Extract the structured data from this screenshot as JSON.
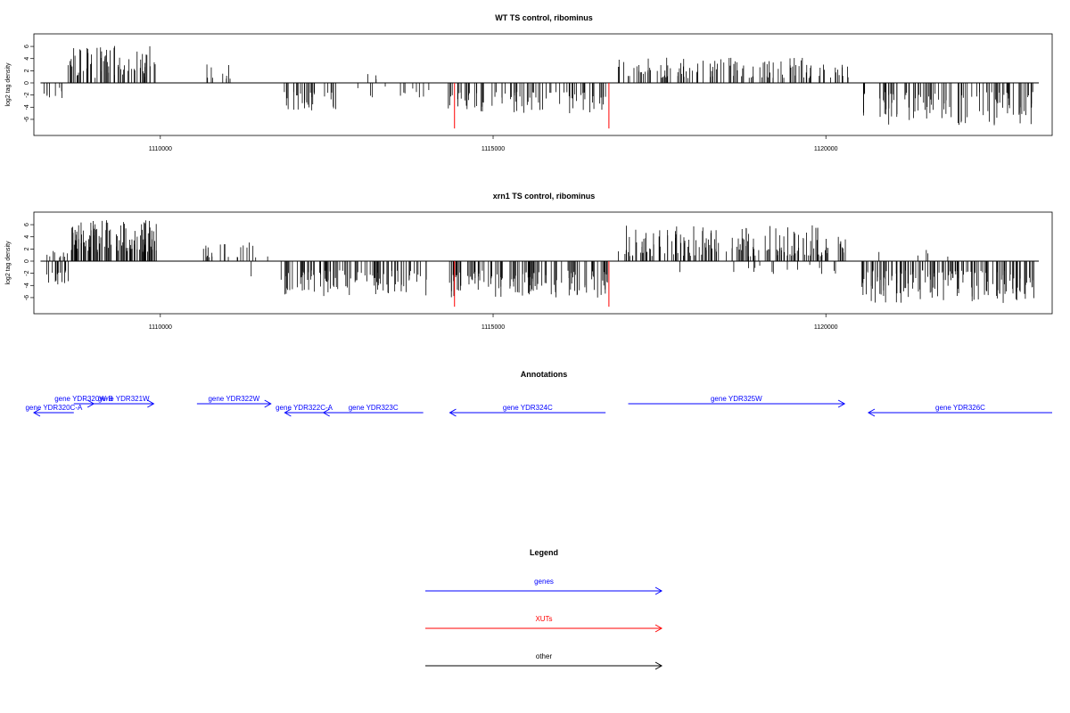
{
  "colors": {
    "gene": "#0000ff",
    "xut": "#ff0000",
    "other": "#000000",
    "frame": "#000000"
  },
  "chart_data": [
    {
      "type": "bar",
      "title": "WT TS control, ribominus",
      "ylabel": "log2 tag density",
      "xlim": [
        1108100,
        1123400
      ],
      "ylim": [
        -7.5,
        7.5
      ],
      "x_ticks": [
        1110000,
        1115000,
        1120000
      ],
      "y_ticks": [
        -6,
        -4,
        -2,
        0,
        2,
        4,
        6
      ],
      "baseline": [
        1108200,
        1123200
      ],
      "density_segments": [
        {
          "strand": "neg",
          "from": 1108250,
          "to": 1108600,
          "count": 8,
          "min": 0.8,
          "max": 2.5
        },
        {
          "strand": "pos",
          "from": 1108600,
          "to": 1109930,
          "count": 70,
          "min": 0.8,
          "max": 6.2
        },
        {
          "strand": "pos",
          "from": 1110650,
          "to": 1111050,
          "count": 9,
          "min": 0.6,
          "max": 3.2
        },
        {
          "strand": "neg",
          "from": 1111850,
          "to": 1112650,
          "count": 30,
          "min": 1.5,
          "max": 4.8
        },
        {
          "strand": "pos",
          "from": 1113100,
          "to": 1113350,
          "count": 3,
          "min": 0.6,
          "max": 2.5
        },
        {
          "strand": "neg",
          "from": 1112900,
          "to": 1114050,
          "count": 12,
          "min": 0.6,
          "max": 2.6
        },
        {
          "strand": "neg",
          "from": 1114300,
          "to": 1116720,
          "count": 80,
          "min": 1.5,
          "max": 5.0
        },
        {
          "strand": "pos",
          "from": 1116880,
          "to": 1120340,
          "count": 120,
          "min": 0.8,
          "max": 4.2
        },
        {
          "strand": "neg",
          "from": 1120540,
          "to": 1123150,
          "count": 100,
          "min": 1.5,
          "max": 7.0
        }
      ],
      "xut_markers": [
        {
          "x": 1114420,
          "y": -7.5
        },
        {
          "x": 1116740,
          "y": -7.5
        }
      ]
    },
    {
      "type": "bar",
      "title": "xrn1 TS control, ribominus",
      "ylabel": "log2 tag density",
      "xlim": [
        1108100,
        1123400
      ],
      "ylim": [
        -7.5,
        7.5
      ],
      "x_ticks": [
        1110000,
        1115000,
        1120000
      ],
      "y_ticks": [
        -6,
        -4,
        -2,
        0,
        2,
        4,
        6
      ],
      "baseline": [
        1108200,
        1123200
      ],
      "density_segments": [
        {
          "strand": "pos",
          "from": 1108250,
          "to": 1108650,
          "count": 10,
          "min": 0.6,
          "max": 2.0
        },
        {
          "strand": "neg",
          "from": 1108250,
          "to": 1108650,
          "count": 15,
          "min": 1.5,
          "max": 4.8
        },
        {
          "strand": "pos",
          "from": 1108650,
          "to": 1109950,
          "count": 110,
          "min": 1.5,
          "max": 6.8
        },
        {
          "strand": "pos",
          "from": 1110600,
          "to": 1111700,
          "count": 25,
          "min": 0.5,
          "max": 3.2
        },
        {
          "strand": "neg",
          "from": 1111350,
          "to": 1111400,
          "count": 1,
          "min": 2.5,
          "max": 2.5
        },
        {
          "strand": "neg",
          "from": 1111800,
          "to": 1114050,
          "count": 100,
          "min": 1.5,
          "max": 6.0
        },
        {
          "strand": "neg",
          "from": 1114300,
          "to": 1116720,
          "count": 120,
          "min": 1.5,
          "max": 6.0
        },
        {
          "strand": "pos",
          "from": 1116880,
          "to": 1120340,
          "count": 160,
          "min": 0.8,
          "max": 5.9
        },
        {
          "strand": "neg",
          "from": 1117400,
          "to": 1120300,
          "count": 15,
          "min": 0.5,
          "max": 2.3
        },
        {
          "strand": "neg",
          "from": 1120540,
          "to": 1123150,
          "count": 150,
          "min": 1.5,
          "max": 7.0
        },
        {
          "strand": "pos",
          "from": 1120650,
          "to": 1121850,
          "count": 5,
          "min": 0.5,
          "max": 2.0
        }
      ],
      "xut_markers": [
        {
          "x": 1114420,
          "y": -7.5
        },
        {
          "x": 1116740,
          "y": -7.5
        }
      ]
    }
  ],
  "annotations": {
    "title": "Annotations",
    "genes": [
      {
        "label": "gene YDR320W-B",
        "start": 1108700,
        "end": 1109000,
        "strand": "+",
        "row": 1
      },
      {
        "label": "gene YDR320C-A",
        "start": 1108100,
        "end": 1108700,
        "strand": "-",
        "row": 2
      },
      {
        "label": "gene YDR321W",
        "start": 1109000,
        "end": 1109900,
        "strand": "+",
        "row": 1
      },
      {
        "label": "gene YDR322W",
        "start": 1110550,
        "end": 1111660,
        "strand": "+",
        "row": 1
      },
      {
        "label": "gene YDR322C-A",
        "start": 1111870,
        "end": 1112450,
        "strand": "-",
        "row": 2
      },
      {
        "label": "gene YDR323C",
        "start": 1112450,
        "end": 1113950,
        "strand": "-",
        "row": 2
      },
      {
        "label": "gene YDR324C",
        "start": 1114350,
        "end": 1116690,
        "strand": "-",
        "row": 2
      },
      {
        "label": "gene YDR325W",
        "start": 1117030,
        "end": 1120280,
        "strand": "+",
        "row": 1
      },
      {
        "label": "gene YDR326C",
        "start": 1120640,
        "end": 1123900,
        "strand": "-",
        "row": 2
      }
    ]
  },
  "legend": {
    "title": "Legend",
    "items": [
      {
        "label": "genes",
        "color_key": "gene"
      },
      {
        "label": "XUTs",
        "color_key": "xut"
      },
      {
        "label": "other",
        "color_key": "other"
      }
    ]
  }
}
